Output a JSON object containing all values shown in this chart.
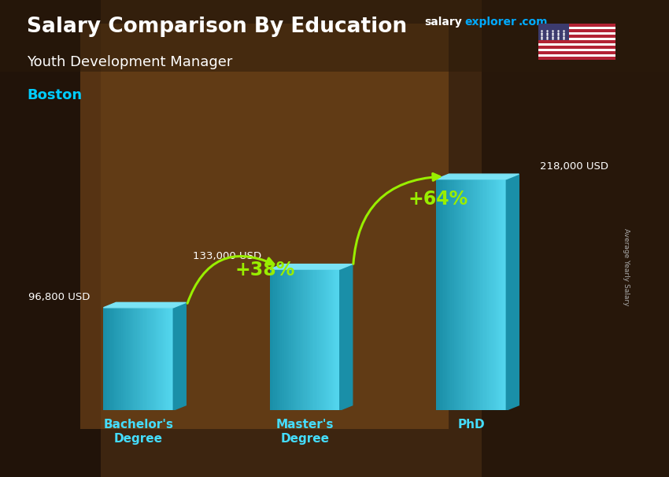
{
  "title_line1": "Salary Comparison By Education",
  "subtitle": "Youth Development Manager",
  "city": "Boston",
  "ylabel_rotated": "Average Yearly Salary",
  "categories": [
    "Bachelor's\nDegree",
    "Master's\nDegree",
    "PhD"
  ],
  "values": [
    96800,
    133000,
    218000
  ],
  "value_labels": [
    "96,800 USD",
    "133,000 USD",
    "218,000 USD"
  ],
  "pct_labels": [
    "+38%",
    "+64%"
  ],
  "bar_face_color": "#29c5e6",
  "bar_top_color": "#7ae3f5",
  "bar_side_color": "#1a8fa8",
  "bg_color": "#5a3a20",
  "title_color": "#ffffff",
  "subtitle_color": "#ffffff",
  "city_color": "#00ccff",
  "value_text_color": "#ffffff",
  "pct_color": "#99ee00",
  "arrow_color": "#66cc00",
  "xtick_color": "#44ddff",
  "watermark_salary_color": "#ffffff",
  "watermark_explorer_color": "#00aaff",
  "watermark_com_color": "#00aaff",
  "right_label_color": "#aaaaaa",
  "bar_positions": [
    1,
    2,
    3
  ],
  "bar_width": 0.42,
  "ylim": [
    0,
    270000
  ],
  "figsize": [
    8.5,
    6.06
  ],
  "dpi": 100
}
